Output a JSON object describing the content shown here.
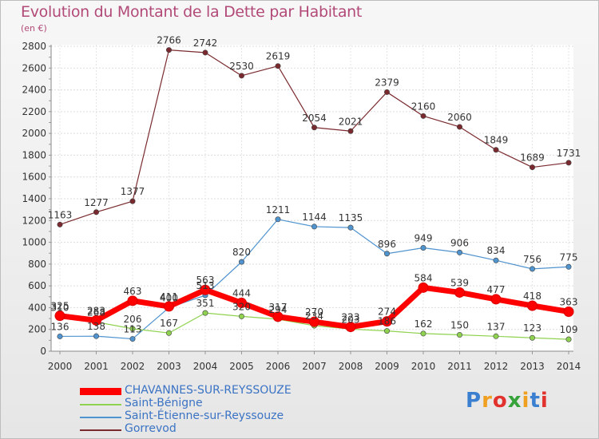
{
  "chart_data": {
    "type": "line",
    "title": "Evolution du Montant de la Dette par Habitant",
    "subtitle": "(en €)",
    "x": [
      "2000",
      "2001",
      "2002",
      "2003",
      "2004",
      "2005",
      "2006",
      "2007",
      "2008",
      "2009",
      "2010",
      "2011",
      "2012",
      "2013",
      "2014"
    ],
    "ylim": [
      0,
      2800
    ],
    "yticks": [
      0,
      200,
      400,
      600,
      800,
      1000,
      1200,
      1400,
      1600,
      1800,
      2000,
      2200,
      2400,
      2600,
      2800
    ],
    "grid": true,
    "legend_position": "bottom-left",
    "series": [
      {
        "name": "Gorrevod",
        "color": "#7a2a2e",
        "values": [
          1163,
          1277,
          1377,
          2766,
          2742,
          2530,
          2619,
          2054,
          2021,
          2379,
          2160,
          2060,
          1849,
          1689,
          1731
        ]
      },
      {
        "name": "Saint-Étienne-sur-Reyssouze",
        "color": "#4f93cf",
        "values": [
          136,
          138,
          113,
          400,
          513,
          820,
          1211,
          1144,
          1135,
          896,
          949,
          906,
          834,
          756,
          775
        ]
      },
      {
        "name": "Saint-Bénigne",
        "color": "#8fd24f",
        "values": [
          310,
          268,
          206,
          167,
          351,
          320,
          294,
          234,
          203,
          186,
          162,
          150,
          137,
          123,
          109
        ]
      },
      {
        "name": "CHAVANNES-SUR-REYSSOUZE",
        "color": "#ff0000",
        "values": [
          325,
          283,
          463,
          411,
          563,
          444,
          317,
          270,
          223,
          274,
          584,
          539,
          477,
          418,
          363
        ]
      }
    ]
  },
  "logo": {
    "text": "Proxiti",
    "letters": [
      "P",
      "r",
      "o",
      "x",
      "i",
      "t",
      "i"
    ],
    "colors": [
      "#3a7fd0",
      "#f0a020",
      "#e2322e",
      "#36a33a",
      "#f0a020",
      "#3a7fd0",
      "#e2322e"
    ]
  }
}
